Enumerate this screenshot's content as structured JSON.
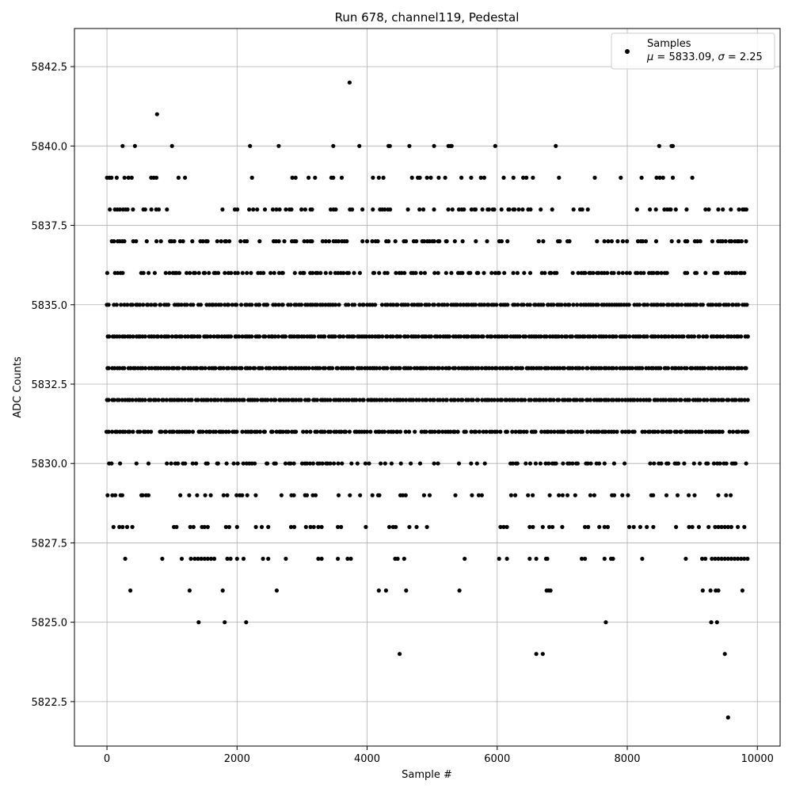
{
  "chart_data": {
    "type": "scatter",
    "title": "Run 678, channel119, Pedestal",
    "xlabel": "Sample #",
    "ylabel": "ADC Counts",
    "xlim": [
      -500,
      10350
    ],
    "ylim": [
      5821.1,
      5843.7
    ],
    "x_ticks": [
      0,
      2000,
      4000,
      6000,
      8000,
      10000
    ],
    "x_tick_labels": [
      "0",
      "2000",
      "4000",
      "6000",
      "8000",
      "10000"
    ],
    "y_ticks": [
      5822.5,
      5825.0,
      5827.5,
      5830.0,
      5832.5,
      5835.0,
      5837.5,
      5840.0,
      5842.5
    ],
    "y_tick_labels": [
      "5822.5",
      "5825.0",
      "5827.5",
      "5830.0",
      "5832.5",
      "5835.0",
      "5837.5",
      "5840.0",
      "5842.5"
    ],
    "grid": true,
    "marker_color": "#000000",
    "legend": {
      "placement": "top-right",
      "line1": "Samples",
      "mu_symbol": "μ",
      "mu_value": " = 5833.09, ",
      "sigma_symbol": "σ",
      "sigma_value": " = 2.25"
    },
    "series": [
      {
        "name": "Samples",
        "stats": {
          "mean": 5833.09,
          "std": 2.25
        },
        "n_samples": 9850,
        "points_by_level": {
          "5842": [
            3730
          ],
          "5841": [
            770
          ],
          "5840": [
            240,
            430,
            1000,
            2200,
            2640,
            3480,
            3880,
            4330,
            4350,
            4650,
            5030,
            5250,
            5280,
            5300,
            5970,
            6900,
            8490,
            8680,
            8700
          ],
          "5839": [
            0,
            40,
            70,
            150,
            270,
            330,
            380,
            680,
            720,
            760,
            1100,
            1200,
            2230,
            2850,
            2900,
            3100,
            3200,
            3450,
            3480,
            3610,
            4090,
            4180,
            4250,
            4690,
            4780,
            4810,
            4920,
            4980,
            5100,
            5200,
            5450,
            5600,
            5750,
            5800,
            6100,
            6250,
            6400,
            6450,
            6550,
            6950,
            7500,
            7900,
            8220,
            8450,
            8500,
            8550,
            8700,
            9000
          ],
          "5828": [
            100,
            190,
            240,
            310,
            390,
            1030,
            1070,
            1280,
            1330,
            1460,
            1500,
            1550,
            1830,
            1880,
            2000,
            2290,
            2380,
            2480,
            2830,
            2880,
            3060,
            3130,
            3180,
            3250,
            3300,
            3550,
            3600,
            3980,
            4340,
            4400,
            4440,
            4650,
            4760,
            4920,
            6050,
            6100,
            6150,
            6500,
            6550,
            6700,
            6800,
            6850,
            7000,
            7350,
            7400,
            7570,
            7650,
            7700,
            8030,
            8100,
            8200,
            8300,
            8400,
            8750,
            8950,
            9000,
            9100,
            9250,
            9350,
            9400,
            9450,
            9500,
            9550,
            9600,
            9700,
            9800
          ],
          "5827": [
            280,
            850,
            1150,
            1290,
            1350,
            1400,
            1450,
            1500,
            1550,
            1600,
            1650,
            1850,
            1900,
            2000,
            2100,
            2400,
            2480,
            2750,
            3250,
            3300,
            3550,
            3700,
            3750,
            4430,
            4470,
            4570,
            5500,
            6030,
            6150,
            6500,
            6600,
            6750,
            6770,
            7300,
            7350,
            7650,
            7750,
            7780,
            8230,
            8900,
            9150,
            9200,
            9300,
            9350,
            9400,
            9450,
            9500,
            9550,
            9600,
            9650,
            9700,
            9750,
            9800,
            9850
          ],
          "5826": [
            360,
            1270,
            1780,
            2610,
            4180,
            4290,
            4600,
            5420,
            6760,
            6790,
            6820,
            9160,
            9280,
            9360,
            9400,
            9770
          ],
          "5825": [
            1410,
            1810,
            2140,
            7670,
            9290,
            9380
          ],
          "5824": [
            4500,
            6600,
            6700,
            9500
          ],
          "5822": [
            9550
          ]
        },
        "dense_levels": {
          "5838": {
            "density": 0.42,
            "sparse_ranges": [
              [
                1000,
                2000
              ],
              [
                6600,
                8300
              ],
              [
                8900,
                9850
              ]
            ]
          },
          "5837": {
            "density": 0.55,
            "sparse_ranges": [
              [
                6300,
                7500
              ]
            ]
          },
          "5836": {
            "density": 0.65,
            "sparse_ranges": [
              [
                6400,
                6600
              ]
            ]
          },
          "5835": {
            "density": 0.9,
            "sparse_ranges": []
          },
          "5834": {
            "density": 1.0,
            "sparse_ranges": []
          },
          "5833": {
            "density": 1.0,
            "sparse_ranges": []
          },
          "5832": {
            "density": 1.0,
            "sparse_ranges": []
          },
          "5831": {
            "density": 0.9,
            "sparse_ranges": [
              [
                0,
                60
              ]
            ]
          },
          "5830": {
            "density": 0.55,
            "sparse_ranges": [
              [
                5000,
                6000
              ],
              [
                4700,
                5000
              ]
            ]
          },
          "5829": {
            "density": 0.3,
            "sparse_ranges": [
              [
                700,
                1100
              ],
              [
                3800,
                4100
              ],
              [
                5000,
                6000
              ]
            ]
          }
        },
        "extra_points": {
          "5838": [
            9800
          ],
          "5836": [
            9800
          ],
          "5834": [
            9850
          ]
        }
      }
    ]
  }
}
